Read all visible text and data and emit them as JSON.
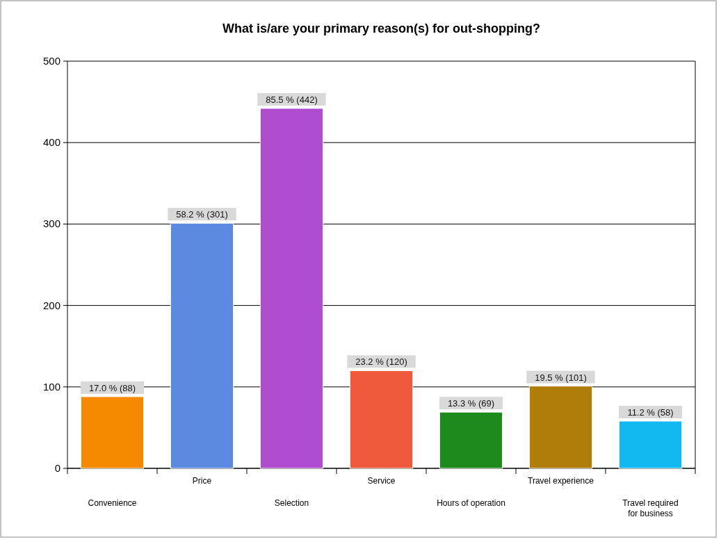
{
  "chart_data": {
    "type": "bar",
    "title": "What is/are your primary reason(s) for out-shopping?",
    "categories": [
      "Convenience",
      "Price",
      "Selection",
      "Service",
      "Hours of operation",
      "Travel experience",
      "Travel required\nfor business"
    ],
    "values": [
      88,
      301,
      442,
      120,
      69,
      101,
      58
    ],
    "colors": [
      "#f58a00",
      "#5b8ae0",
      "#b04ccf",
      "#f05a3c",
      "#1e8a1e",
      "#b07c0a",
      "#12b8f0"
    ],
    "value_labels": [
      "17.0 % (88)",
      "58.2 % (301)",
      "85.5 % (442)",
      "23.2 % (120)",
      "13.3 % (69)",
      "19.5 % (101)",
      "11.2 % (58)"
    ],
    "ylim": [
      0,
      500
    ],
    "yticks": [
      0,
      100,
      200,
      300,
      400,
      500
    ],
    "grid": "y"
  }
}
